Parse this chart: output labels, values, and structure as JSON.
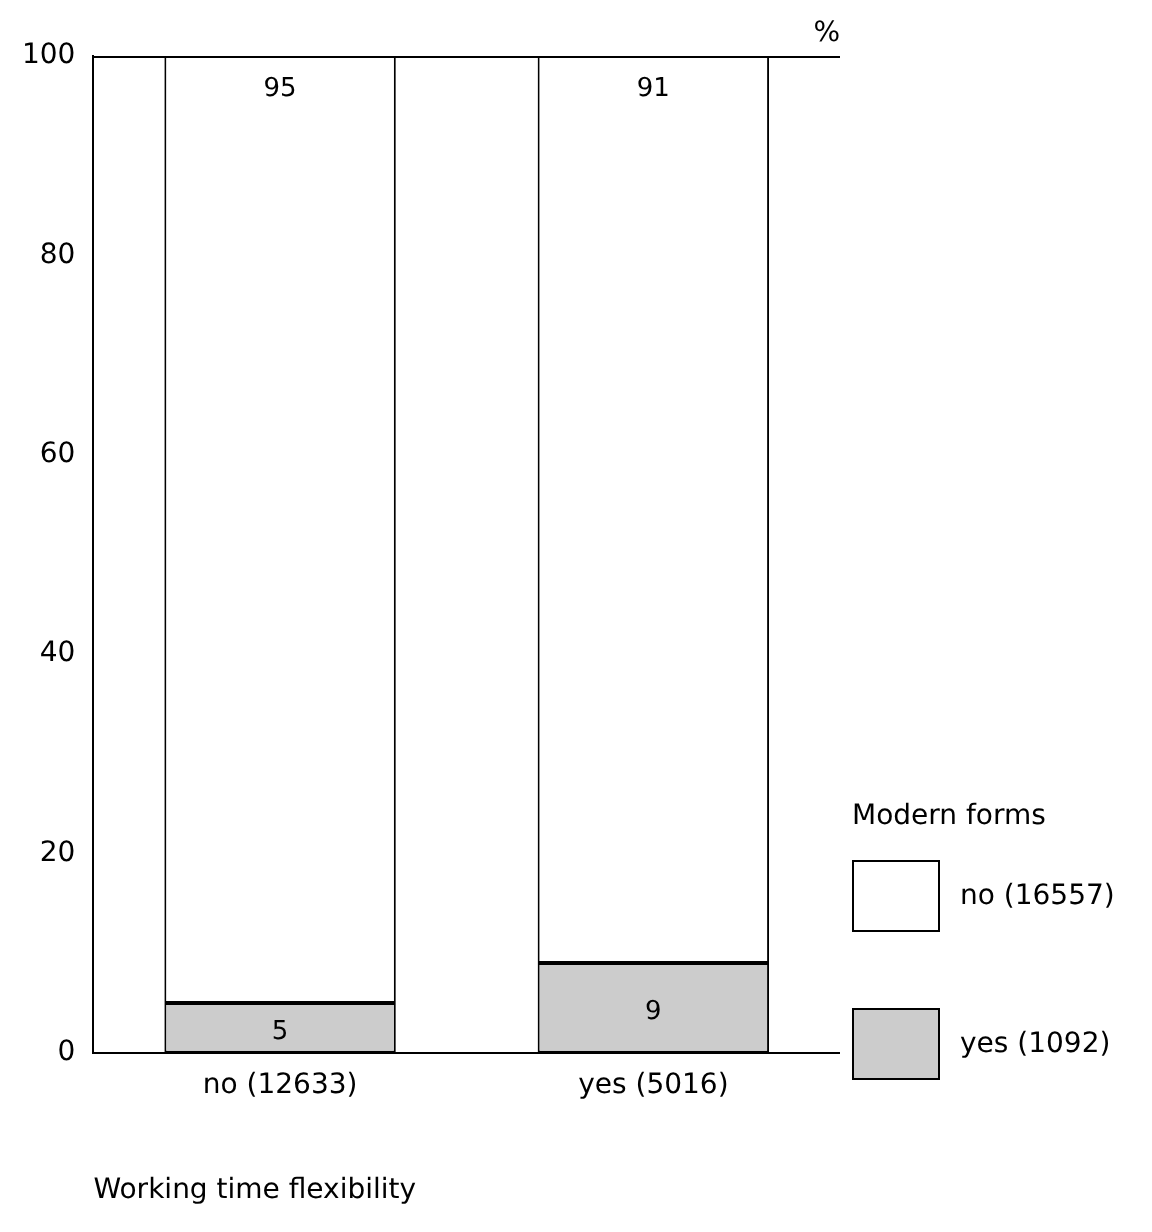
{
  "chart_data": {
    "type": "bar",
    "stacked": true,
    "categories": [
      "no (12633)",
      "yes (5016)"
    ],
    "series": [
      {
        "name": "yes (1092)",
        "color": "#cccccc",
        "values": [
          5,
          9
        ]
      },
      {
        "name": "no (16557)",
        "color": "#ffffff",
        "values": [
          95,
          91
        ]
      }
    ],
    "ylim": [
      0,
      100
    ],
    "yticks": [
      0,
      20,
      40,
      60,
      80,
      100
    ],
    "ylabel": "%",
    "xlabel": "Working time flexibility",
    "legend_title": "Modern forms",
    "legend": "right",
    "data_labels": true,
    "grid": false
  }
}
